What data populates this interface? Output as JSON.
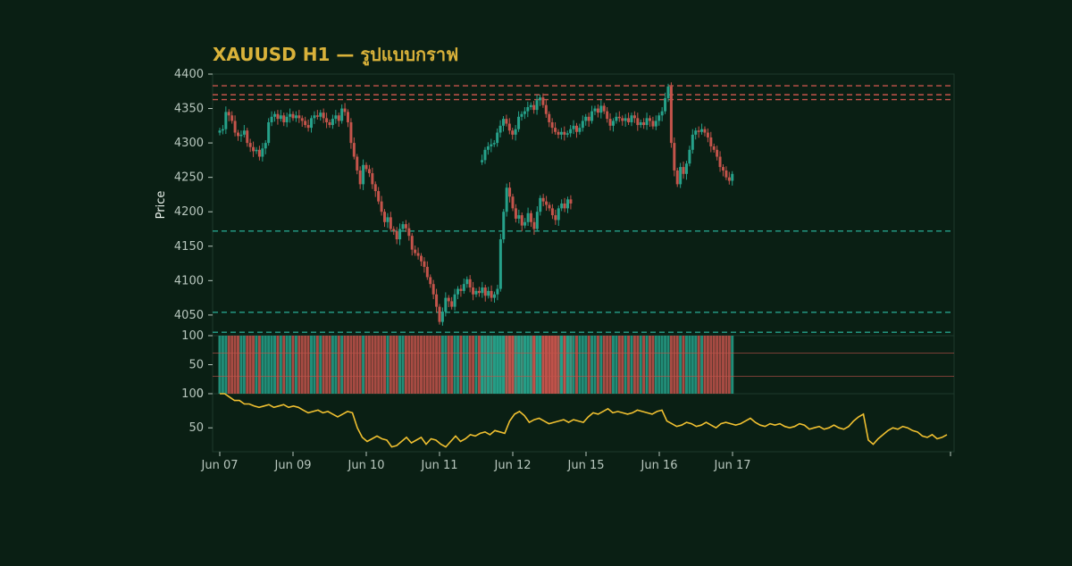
{
  "title": "XAUUSD H1 — รูปแบบกราฟ",
  "colors": {
    "background": "#0a1f14",
    "up": "#26a18a",
    "down": "#c4544b",
    "rsi_line": "#f0c030",
    "text": "#b7c6bd",
    "title": "#d9b23a"
  },
  "chart_data": {
    "type": "candlestick",
    "symbol": "XAUUSD",
    "timeframe": "H1",
    "ylabel": "Price",
    "ylim": [
      4020,
      4400
    ],
    "y_ticks": [
      "4050",
      "4100",
      "4150",
      "4200",
      "4250",
      "4300",
      "4350",
      "4400"
    ],
    "x_ticks": [
      "Jun 07",
      "Jun 09",
      "Jun 10",
      "Jun 11",
      "Jun 12",
      "Jun 15",
      "Jun 16",
      "Jun 17"
    ],
    "resistance_levels": [
      4383,
      4370,
      4363
    ],
    "support_levels": [
      4172,
      4054,
      4025
    ],
    "segments": [
      {
        "start_day": 0.0,
        "closes": [
          4318,
          4320,
          4345,
          4340,
          4332,
          4315,
          4310,
          4312,
          4318,
          4300,
          4294,
          4288,
          4290,
          4280,
          4292,
          4300,
          4330,
          4338,
          4342,
          4335,
          4340,
          4330,
          4338,
          4342,
          4336,
          4340,
          4336,
          4332,
          4326,
          4322,
          4336,
          4340,
          4338,
          4344,
          4336,
          4330,
          4326,
          4335,
          4340,
          4332,
          4350,
          4345,
          4330,
          4300,
          4280,
          4260,
          4240,
          4268,
          4262,
          4256,
          4240,
          4230,
          4215,
          4200,
          4185,
          4192,
          4175,
          4172,
          4160,
          4175,
          4182,
          4176,
          4165,
          4145,
          4140,
          4136,
          4128,
          4120,
          4105,
          4095,
          4080,
          4062,
          4040,
          4055,
          4075,
          4070,
          4062,
          4080,
          4088,
          4085,
          4095,
          4102,
          4090,
          4080,
          4085,
          4082,
          4090,
          4078,
          4085,
          4075,
          4080,
          4088,
          4160,
          4200,
          4235,
          4222,
          4205,
          4190,
          4195,
          4180,
          4185,
          4198,
          4185,
          4175,
          4200,
          4220,
          4215,
          4210,
          4205,
          4195,
          4188,
          4205,
          4212,
          4205,
          4218,
          4212
        ]
      },
      {
        "start_day": 3.58,
        "closes": [
          4275,
          4290,
          4295,
          4298,
          4300,
          4315,
          4325,
          4335,
          4328,
          4318,
          4312,
          4320,
          4338,
          4342,
          4346,
          4352,
          4355,
          4348,
          4362,
          4366,
          4355,
          4342,
          4330,
          4322,
          4316,
          4312,
          4316,
          4312,
          4314,
          4320,
          4325,
          4316,
          4322,
          4332,
          4338,
          4332,
          4346,
          4350,
          4344,
          4354,
          4346,
          4335,
          4325,
          4332,
          4338,
          4336,
          4332,
          4336,
          4330,
          4340,
          4336,
          4326,
          4330,
          4326,
          4336,
          4332,
          4324,
          4332,
          4340,
          4346,
          4365,
          4382,
          4300,
          4260,
          4240,
          4265,
          4255,
          4270,
          4290,
          4312,
          4318,
          4316,
          4320,
          4315,
          4308,
          4295,
          4290,
          4280,
          4265,
          4260,
          4250,
          4245,
          4255
        ]
      }
    ],
    "oscillator": {
      "ylim": [
        0,
        100
      ],
      "y_ticks": [
        "0",
        "50",
        "100"
      ],
      "levels": [
        70,
        30
      ]
    },
    "rsi": {
      "ylim": [
        15,
        100
      ],
      "y_ticks": [
        "50",
        "100"
      ],
      "values": [
        100,
        100,
        95,
        90,
        90,
        85,
        85,
        82,
        80,
        82,
        84,
        80,
        82,
        84,
        80,
        82,
        80,
        76,
        72,
        74,
        76,
        72,
        74,
        70,
        66,
        70,
        74,
        72,
        50,
        36,
        30,
        34,
        38,
        34,
        32,
        22,
        24,
        30,
        36,
        28,
        32,
        36,
        26,
        34,
        32,
        26,
        22,
        30,
        38,
        30,
        34,
        40,
        38,
        42,
        44,
        40,
        46,
        44,
        42,
        60,
        70,
        74,
        68,
        58,
        62,
        64,
        60,
        56,
        58,
        60,
        62,
        58,
        62,
        60,
        58,
        66,
        72,
        70,
        74,
        78,
        72,
        74,
        72,
        70,
        72,
        76,
        74,
        72,
        70,
        74,
        76,
        60,
        56,
        52,
        54,
        58,
        56,
        52,
        54,
        58,
        54,
        50,
        56,
        58,
        56,
        54,
        56,
        60,
        64,
        58,
        54,
        52,
        56,
        54,
        56,
        52,
        50,
        52,
        56,
        54,
        48,
        50,
        52,
        48,
        50,
        54,
        50,
        48,
        52,
        60,
        66,
        70,
        32,
        26,
        34,
        40,
        46,
        50,
        48,
        52,
        50,
        46,
        44,
        38,
        36,
        40,
        34,
        36,
        40
      ]
    }
  }
}
